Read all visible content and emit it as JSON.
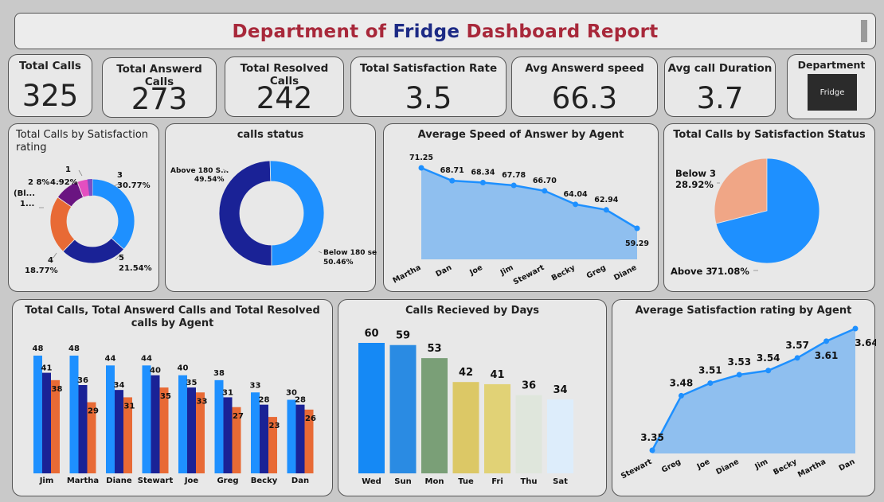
{
  "header": {
    "title_part1": "Department of ",
    "title_part2": "Fridge",
    "title_part3": "  Dashboard Report"
  },
  "kpis": [
    {
      "label": "Total Calls",
      "value": "325"
    },
    {
      "label": "Total Answerd Calls",
      "value": "273"
    },
    {
      "label": "Total Resolved Calls",
      "value": "242"
    },
    {
      "label": "Total Satisfaction Rate",
      "value": "3.5"
    },
    {
      "label": "Avg Answerd speed",
      "value": "66.3"
    },
    {
      "label": "Avg call Duration",
      "value": "3.7"
    }
  ],
  "department": {
    "label": "Department",
    "value": "Fridge"
  },
  "colors": {
    "primary": "#1e90ff",
    "dark": "#1a2296",
    "orange": "#e86a35",
    "area": "#8fbfef",
    "salmon": "#f0a686"
  },
  "chart_data": [
    {
      "type": "pie",
      "title": "Total Calls by Satisfaction rating",
      "categories": [
        "3",
        "5",
        "4",
        "2",
        "1"
      ],
      "values": [
        30.77,
        21.54,
        18.77,
        8.0,
        4.92
      ],
      "labels": [
        "3\n30.77%",
        "5\n21.54%",
        "4\n18.77%",
        "2 8%",
        "1\n4.92%"
      ],
      "truncated_labels": [
        "(Bl...",
        "1..."
      ],
      "colors": [
        "#1e90ff",
        "#1a2296",
        "#e86a35",
        "#6a1581",
        "#e44fc0",
        "#7b4fc6"
      ]
    },
    {
      "type": "pie",
      "title": "calls status",
      "categories": [
        "Above 180 S...",
        "Below 180 sec"
      ],
      "values": [
        49.54,
        50.46
      ],
      "value_labels": [
        "49.54%",
        "50.46%"
      ],
      "colors": [
        "#1a2296",
        "#1e90ff"
      ]
    },
    {
      "type": "area",
      "title": "Average Speed of Answer by Agent",
      "categories": [
        "Martha",
        "Dan",
        "Joe",
        "Jim",
        "Stewart",
        "Becky",
        "Greg",
        "Diane"
      ],
      "values": [
        71.25,
        68.71,
        68.34,
        67.78,
        66.7,
        64.04,
        62.94,
        59.29
      ],
      "value_labels": [
        "71.25",
        "68.71",
        "68.34",
        "67.78",
        "66.70",
        "64.04",
        "62.94",
        "59.29"
      ]
    },
    {
      "type": "pie",
      "title": "Total Calls by Satisfaction Status",
      "categories": [
        "Below 3",
        "Above 3"
      ],
      "values": [
        28.92,
        71.08
      ],
      "value_labels": [
        "28.92%",
        "71.08%"
      ],
      "colors": [
        "#f0a686",
        "#1e90ff"
      ]
    },
    {
      "type": "bar",
      "title": "Total Calls, Total Answerd Calls and Total Resolved calls by Agent",
      "categories": [
        "Jim",
        "Martha",
        "Diane",
        "Stewart",
        "Joe",
        "Greg",
        "Becky",
        "Dan"
      ],
      "series": [
        {
          "values": [
            48,
            48,
            44,
            44,
            40,
            38,
            33,
            30
          ],
          "color": "#1e90ff"
        },
        {
          "values": [
            41,
            36,
            34,
            40,
            35,
            31,
            28,
            28
          ],
          "color": "#1a2296"
        },
        {
          "values": [
            38,
            29,
            31,
            35,
            33,
            27,
            23,
            26
          ],
          "color": "#e86a35"
        }
      ]
    },
    {
      "type": "bar",
      "title": "Calls Recieved by Days",
      "categories": [
        "Wed",
        "Sun",
        "Mon",
        "Tue",
        "Fri",
        "Thu",
        "Sat"
      ],
      "values": [
        60,
        59,
        53,
        42,
        41,
        36,
        34
      ],
      "colors": [
        "#1589f5",
        "#2a8be3",
        "#7a9f77",
        "#dcc866",
        "#e1d276",
        "#dfe6dc",
        "#ddedfb"
      ]
    },
    {
      "type": "area",
      "title": "Average Satisfaction rating by Agent",
      "categories": [
        "Stewart",
        "Greg",
        "Joe",
        "Diane",
        "Jim",
        "Becky",
        "Martha",
        "Dan"
      ],
      "values": [
        3.35,
        3.48,
        3.51,
        3.53,
        3.54,
        3.57,
        3.61,
        3.64
      ],
      "value_labels": [
        "3.35",
        "3.48",
        "3.51",
        "3.53",
        "3.54",
        "3.57",
        "3.61",
        "3.64"
      ]
    }
  ]
}
